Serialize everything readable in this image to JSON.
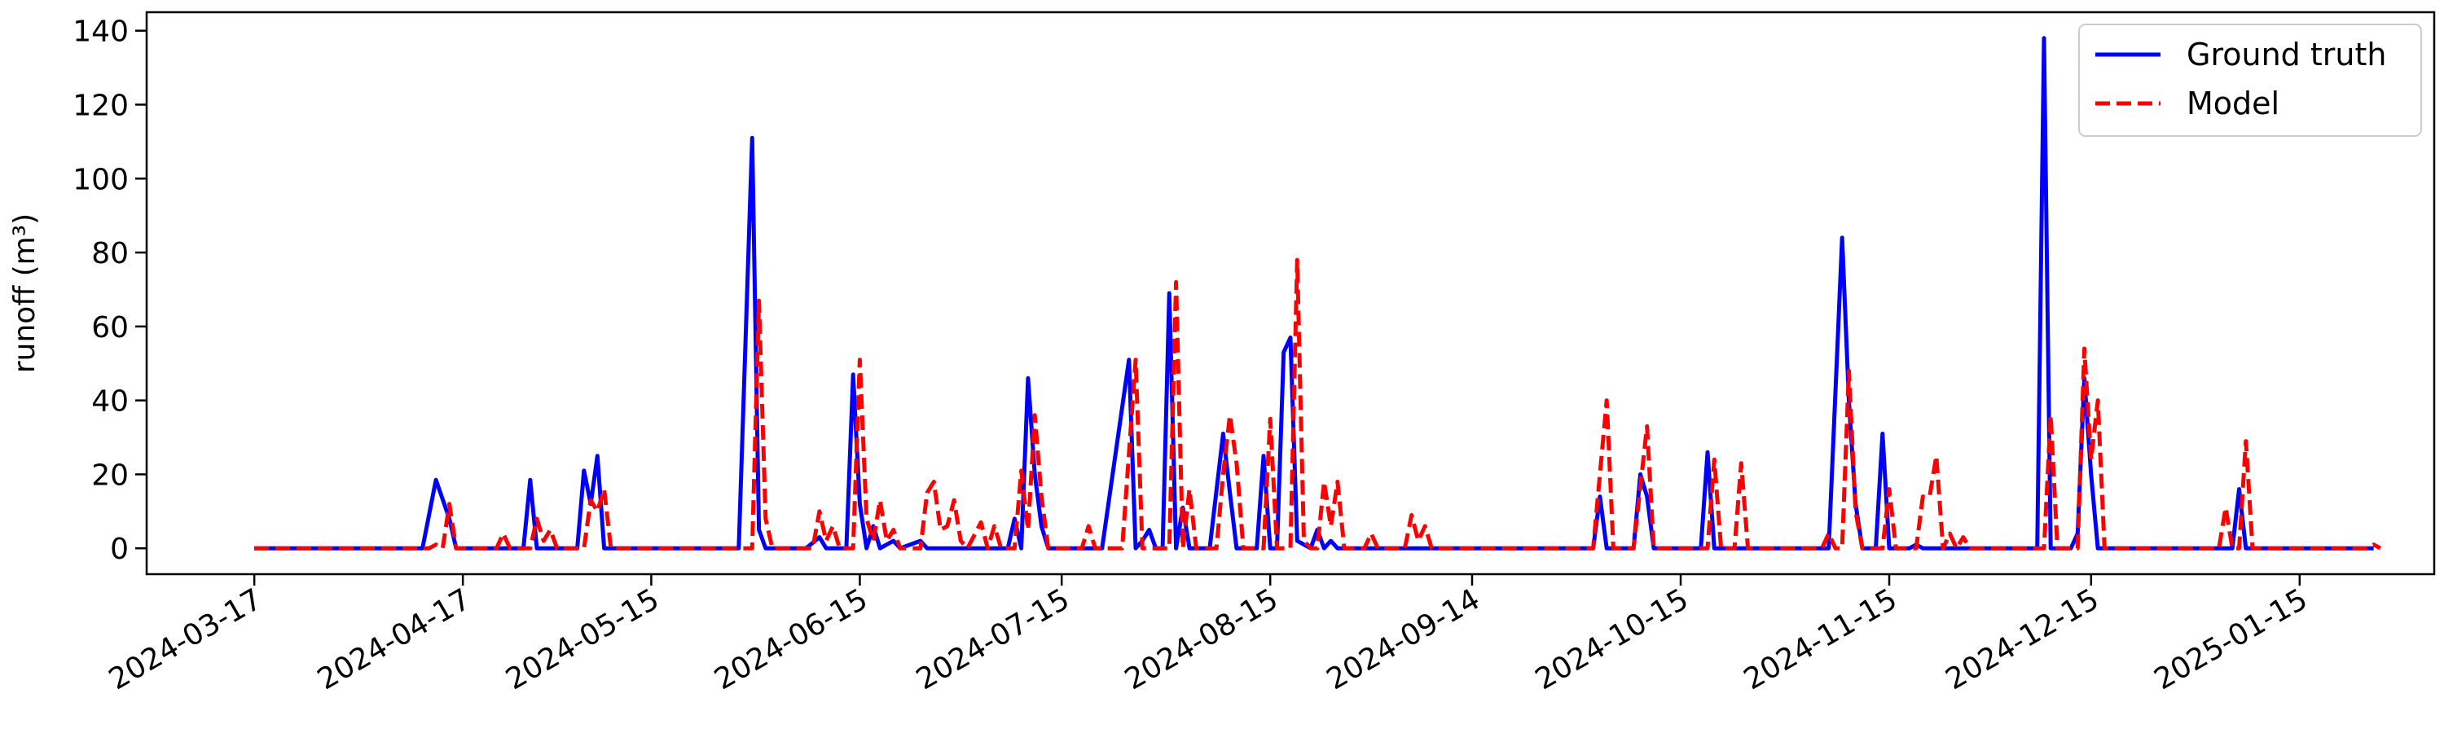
{
  "chart_data": {
    "type": "line",
    "title": "",
    "xlabel": "",
    "ylabel": "runoff (m³)",
    "ylim": [
      -7,
      145
    ],
    "xlim": [
      "2024-03-01",
      "2025-02-04"
    ],
    "grid": false,
    "legend_position": "top-right",
    "x_ticks": [
      "2024-03-17",
      "2024-04-17",
      "2024-05-15",
      "2024-06-15",
      "2024-07-15",
      "2024-08-15",
      "2024-09-14",
      "2024-10-15",
      "2024-11-15",
      "2024-12-15",
      "2025-01-15"
    ],
    "y_ticks": [
      0,
      20,
      40,
      60,
      80,
      100,
      120,
      140
    ],
    "series": [
      {
        "name": "Ground truth",
        "color": "#0000ff",
        "style": "solid",
        "points": [
          [
            "2024-03-17",
            0
          ],
          [
            "2024-04-11",
            0
          ],
          [
            "2024-04-13",
            18.5
          ],
          [
            "2024-04-15",
            8
          ],
          [
            "2024-04-16",
            0
          ],
          [
            "2024-04-25",
            0
          ],
          [
            "2024-04-26",
            0
          ],
          [
            "2024-04-27",
            18.5
          ],
          [
            "2024-04-28",
            0
          ],
          [
            "2024-04-30",
            0
          ],
          [
            "2024-05-04",
            0
          ],
          [
            "2024-05-05",
            21
          ],
          [
            "2024-05-06",
            12
          ],
          [
            "2024-05-07",
            25
          ],
          [
            "2024-05-08",
            0
          ],
          [
            "2024-05-28",
            0
          ],
          [
            "2024-05-30",
            111
          ],
          [
            "2024-05-31",
            5
          ],
          [
            "2024-06-01",
            0
          ],
          [
            "2024-06-07",
            0
          ],
          [
            "2024-06-09",
            3
          ],
          [
            "2024-06-10",
            0
          ],
          [
            "2024-06-13",
            0
          ],
          [
            "2024-06-14",
            47
          ],
          [
            "2024-06-15",
            12
          ],
          [
            "2024-06-16",
            0
          ],
          [
            "2024-06-17",
            6
          ],
          [
            "2024-06-18",
            0
          ],
          [
            "2024-06-20",
            2
          ],
          [
            "2024-06-21",
            0
          ],
          [
            "2024-06-24",
            2
          ],
          [
            "2024-06-25",
            0
          ],
          [
            "2024-07-05",
            0
          ],
          [
            "2024-07-07",
            0
          ],
          [
            "2024-07-08",
            8
          ],
          [
            "2024-07-09",
            0
          ],
          [
            "2024-07-10",
            46
          ],
          [
            "2024-07-11",
            20
          ],
          [
            "2024-07-12",
            6
          ],
          [
            "2024-07-13",
            0
          ],
          [
            "2024-07-21",
            0
          ],
          [
            "2024-07-25",
            51
          ],
          [
            "2024-07-26",
            0
          ],
          [
            "2024-07-27",
            2
          ],
          [
            "2024-07-28",
            5
          ],
          [
            "2024-07-29",
            0
          ],
          [
            "2024-07-30",
            0
          ],
          [
            "2024-07-31",
            69
          ],
          [
            "2024-08-01",
            0
          ],
          [
            "2024-08-02",
            11
          ],
          [
            "2024-08-03",
            0
          ],
          [
            "2024-08-06",
            0
          ],
          [
            "2024-08-08",
            31
          ],
          [
            "2024-08-09",
            15
          ],
          [
            "2024-08-10",
            0
          ],
          [
            "2024-08-13",
            0
          ],
          [
            "2024-08-14",
            25
          ],
          [
            "2024-08-15",
            0
          ],
          [
            "2024-08-16",
            0
          ],
          [
            "2024-08-17",
            53
          ],
          [
            "2024-08-18",
            57
          ],
          [
            "2024-08-19",
            2
          ],
          [
            "2024-08-21",
            0
          ],
          [
            "2024-08-22",
            5
          ],
          [
            "2024-08-23",
            0
          ],
          [
            "2024-08-24",
            2
          ],
          [
            "2024-08-25",
            0
          ],
          [
            "2024-10-02",
            0
          ],
          [
            "2024-10-03",
            14
          ],
          [
            "2024-10-04",
            0
          ],
          [
            "2024-10-08",
            0
          ],
          [
            "2024-10-09",
            20
          ],
          [
            "2024-10-10",
            14
          ],
          [
            "2024-10-11",
            0
          ],
          [
            "2024-10-18",
            0
          ],
          [
            "2024-10-19",
            26
          ],
          [
            "2024-10-20",
            0
          ],
          [
            "2024-11-06",
            0
          ],
          [
            "2024-11-08",
            84
          ],
          [
            "2024-11-09",
            40
          ],
          [
            "2024-11-10",
            12
          ],
          [
            "2024-11-11",
            0
          ],
          [
            "2024-11-13",
            0
          ],
          [
            "2024-11-14",
            31
          ],
          [
            "2024-11-15",
            0
          ],
          [
            "2024-11-18",
            0
          ],
          [
            "2024-11-19",
            1
          ],
          [
            "2024-11-20",
            0
          ],
          [
            "2024-12-07",
            0
          ],
          [
            "2024-12-08",
            138
          ],
          [
            "2024-12-09",
            0
          ],
          [
            "2024-12-12",
            0
          ],
          [
            "2024-12-13",
            4
          ],
          [
            "2024-12-14",
            46
          ],
          [
            "2024-12-15",
            20
          ],
          [
            "2024-12-16",
            0
          ],
          [
            "2025-01-05",
            0
          ],
          [
            "2025-01-06",
            16
          ],
          [
            "2025-01-07",
            0
          ],
          [
            "2025-01-26",
            0
          ]
        ]
      },
      {
        "name": "Model",
        "color": "#ff0000",
        "style": "dashed",
        "points": [
          [
            "2024-03-17",
            0
          ],
          [
            "2024-04-12",
            0
          ],
          [
            "2024-04-13",
            1
          ],
          [
            "2024-04-14",
            0
          ],
          [
            "2024-04-15",
            12
          ],
          [
            "2024-04-16",
            0
          ],
          [
            "2024-04-22",
            0
          ],
          [
            "2024-04-23",
            4
          ],
          [
            "2024-04-24",
            0
          ],
          [
            "2024-04-27",
            0
          ],
          [
            "2024-04-28",
            8
          ],
          [
            "2024-04-29",
            2
          ],
          [
            "2024-04-30",
            5
          ],
          [
            "2024-05-01",
            0
          ],
          [
            "2024-05-05",
            0
          ],
          [
            "2024-05-06",
            13
          ],
          [
            "2024-05-07",
            10
          ],
          [
            "2024-05-08",
            16
          ],
          [
            "2024-05-09",
            0
          ],
          [
            "2024-05-30",
            0
          ],
          [
            "2024-05-31",
            67
          ],
          [
            "2024-06-01",
            8
          ],
          [
            "2024-06-02",
            0
          ],
          [
            "2024-06-08",
            0
          ],
          [
            "2024-06-09",
            10
          ],
          [
            "2024-06-10",
            2
          ],
          [
            "2024-06-11",
            6
          ],
          [
            "2024-06-12",
            0
          ],
          [
            "2024-06-14",
            0
          ],
          [
            "2024-06-15",
            51
          ],
          [
            "2024-06-16",
            8
          ],
          [
            "2024-06-17",
            2
          ],
          [
            "2024-06-18",
            13
          ],
          [
            "2024-06-19",
            2
          ],
          [
            "2024-06-20",
            5
          ],
          [
            "2024-06-21",
            0
          ],
          [
            "2024-06-24",
            0
          ],
          [
            "2024-06-25",
            15
          ],
          [
            "2024-06-26",
            18
          ],
          [
            "2024-06-27",
            5
          ],
          [
            "2024-06-28",
            6
          ],
          [
            "2024-06-29",
            13
          ],
          [
            "2024-06-30",
            2
          ],
          [
            "2024-07-01",
            0
          ],
          [
            "2024-07-03",
            7
          ],
          [
            "2024-07-04",
            0
          ],
          [
            "2024-07-05",
            6
          ],
          [
            "2024-07-06",
            0
          ],
          [
            "2024-07-08",
            0
          ],
          [
            "2024-07-09",
            21
          ],
          [
            "2024-07-10",
            5
          ],
          [
            "2024-07-11",
            36
          ],
          [
            "2024-07-12",
            14
          ],
          [
            "2024-07-13",
            0
          ],
          [
            "2024-07-18",
            0
          ],
          [
            "2024-07-19",
            6
          ],
          [
            "2024-07-20",
            0
          ],
          [
            "2024-07-24",
            0
          ],
          [
            "2024-07-26",
            51
          ],
          [
            "2024-07-27",
            0
          ],
          [
            "2024-07-31",
            0
          ],
          [
            "2024-08-01",
            72
          ],
          [
            "2024-08-02",
            0
          ],
          [
            "2024-08-03",
            16
          ],
          [
            "2024-08-04",
            0
          ],
          [
            "2024-08-07",
            0
          ],
          [
            "2024-08-08",
            20
          ],
          [
            "2024-08-09",
            36
          ],
          [
            "2024-08-10",
            23
          ],
          [
            "2024-08-11",
            0
          ],
          [
            "2024-08-14",
            0
          ],
          [
            "2024-08-15",
            35
          ],
          [
            "2024-08-16",
            0
          ],
          [
            "2024-08-18",
            0
          ],
          [
            "2024-08-19",
            78
          ],
          [
            "2024-08-20",
            2
          ],
          [
            "2024-08-21",
            0
          ],
          [
            "2024-08-22",
            0
          ],
          [
            "2024-08-23",
            18
          ],
          [
            "2024-08-24",
            6
          ],
          [
            "2024-08-25",
            18
          ],
          [
            "2024-08-26",
            0
          ],
          [
            "2024-08-29",
            0
          ],
          [
            "2024-08-30",
            4
          ],
          [
            "2024-08-31",
            0
          ],
          [
            "2024-09-04",
            0
          ],
          [
            "2024-09-05",
            9
          ],
          [
            "2024-09-06",
            2
          ],
          [
            "2024-09-07",
            6
          ],
          [
            "2024-09-08",
            0
          ],
          [
            "2024-10-02",
            0
          ],
          [
            "2024-10-04",
            40
          ],
          [
            "2024-10-05",
            0
          ],
          [
            "2024-10-08",
            0
          ],
          [
            "2024-10-10",
            33
          ],
          [
            "2024-10-11",
            0
          ],
          [
            "2024-10-19",
            0
          ],
          [
            "2024-10-20",
            24
          ],
          [
            "2024-10-21",
            0
          ],
          [
            "2024-10-23",
            0
          ],
          [
            "2024-10-24",
            23
          ],
          [
            "2024-10-25",
            0
          ],
          [
            "2024-11-05",
            0
          ],
          [
            "2024-11-06",
            4
          ],
          [
            "2024-11-07",
            0
          ],
          [
            "2024-11-08",
            0
          ],
          [
            "2024-11-09",
            48
          ],
          [
            "2024-11-10",
            10
          ],
          [
            "2024-11-11",
            0
          ],
          [
            "2024-11-14",
            0
          ],
          [
            "2024-11-15",
            16
          ],
          [
            "2024-11-16",
            0
          ],
          [
            "2024-11-19",
            0
          ],
          [
            "2024-11-20",
            14
          ],
          [
            "2024-11-21",
            14
          ],
          [
            "2024-11-22",
            25
          ],
          [
            "2024-11-23",
            0
          ],
          [
            "2024-11-24",
            4
          ],
          [
            "2024-11-25",
            0
          ],
          [
            "2024-11-26",
            3
          ],
          [
            "2024-11-27",
            0
          ],
          [
            "2024-12-07",
            0
          ],
          [
            "2024-12-08",
            0
          ],
          [
            "2024-12-09",
            36
          ],
          [
            "2024-12-10",
            0
          ],
          [
            "2024-12-13",
            0
          ],
          [
            "2024-12-14",
            54
          ],
          [
            "2024-12-15",
            24
          ],
          [
            "2024-12-16",
            40
          ],
          [
            "2024-12-17",
            0
          ],
          [
            "2025-01-03",
            0
          ],
          [
            "2025-01-04",
            11
          ],
          [
            "2025-01-05",
            0
          ],
          [
            "2025-01-06",
            0
          ],
          [
            "2025-01-07",
            29
          ],
          [
            "2025-01-08",
            0
          ],
          [
            "2025-01-25",
            0
          ],
          [
            "2025-01-26",
            1
          ],
          [
            "2025-01-27",
            0
          ]
        ]
      }
    ]
  }
}
